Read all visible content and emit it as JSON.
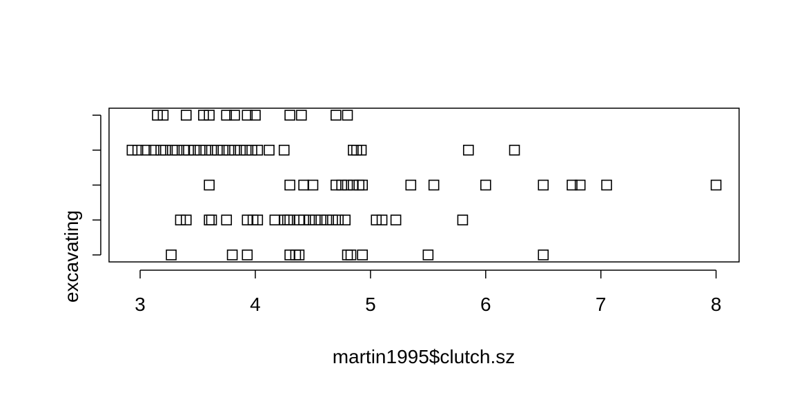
{
  "chart_data": {
    "type": "scatter",
    "title": "",
    "xlabel": "martin1995$clutch.sz",
    "ylabel": "excavating",
    "xlim": [
      2.73,
      8.2
    ],
    "ylim": [
      0.8,
      5.2
    ],
    "x_ticks": [
      "3",
      "4",
      "5",
      "6",
      "7",
      "8"
    ],
    "y_ticks": [
      "",
      "",
      "",
      "",
      ""
    ],
    "grid": false,
    "marker": "open-square",
    "series": [
      {
        "level": 1,
        "x": [
          3.27,
          3.8,
          3.93,
          4.3,
          4.35,
          4.38,
          4.8,
          4.83,
          4.93,
          5.5,
          6.5
        ]
      },
      {
        "level": 2,
        "x": [
          3.35,
          3.4,
          3.6,
          3.62,
          3.75,
          3.93,
          3.98,
          4.02,
          4.17,
          4.25,
          4.28,
          4.3,
          4.38,
          4.42,
          4.47,
          4.52,
          4.57,
          4.62,
          4.67,
          4.72,
          4.78,
          5.05,
          5.1,
          5.22,
          5.8
        ]
      },
      {
        "level": 3,
        "x": [
          3.6,
          4.3,
          4.42,
          4.5,
          4.7,
          4.75,
          4.8,
          4.85,
          4.9,
          4.93,
          5.35,
          5.55,
          6.0,
          6.5,
          6.75,
          6.82,
          7.05,
          8.0
        ]
      },
      {
        "level": 4,
        "x": [
          2.93,
          2.98,
          3.05,
          3.12,
          3.18,
          3.22,
          3.28,
          3.32,
          3.38,
          3.42,
          3.47,
          3.52,
          3.57,
          3.62,
          3.67,
          3.72,
          3.77,
          3.82,
          3.87,
          3.92,
          3.97,
          4.02,
          4.12,
          4.25,
          4.85,
          4.88,
          4.92,
          5.85,
          6.25
        ]
      },
      {
        "level": 5,
        "x": [
          3.15,
          3.2,
          3.4,
          3.55,
          3.6,
          3.75,
          3.82,
          3.93,
          4.0,
          4.3,
          4.4,
          4.7,
          4.8
        ]
      }
    ]
  }
}
